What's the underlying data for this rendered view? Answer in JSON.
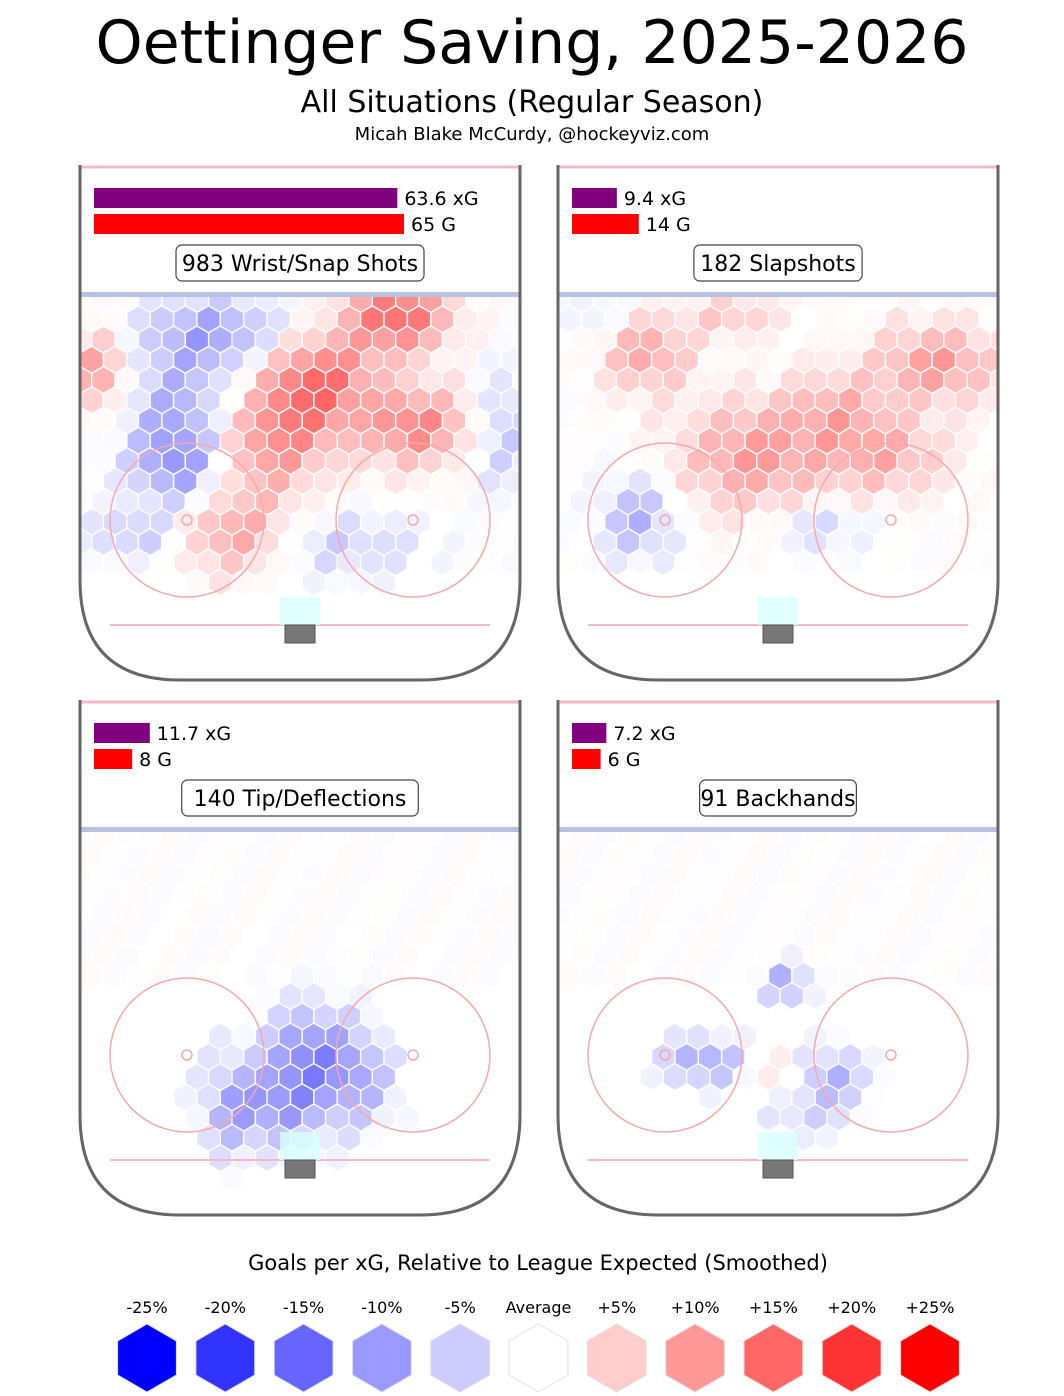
{
  "title": "Oettinger Saving, 2025-2026",
  "subtitle": "All Situations (Regular Season)",
  "credit": "Micah Blake McCurdy, @hockeyviz.com",
  "colors": {
    "xg_bar": "#800080",
    "g_bar": "#ff0000",
    "rink_line": "#666666",
    "blue_line": "#b8c2e0",
    "red_line": "#f5b8c4",
    "crease": "#d8ffff",
    "net": "#777777",
    "faceoff": "#f4a9a9"
  },
  "chart_data": {
    "type": "heatmap",
    "color_scale_title": "Goals per xG, Relative to League Expected (Smoothed)",
    "legend_labels": [
      "-25%",
      "-20%",
      "-15%",
      "-10%",
      "-5%",
      "Average",
      "+5%",
      "+10%",
      "+15%",
      "+20%",
      "+25%"
    ],
    "legend_colors": [
      "#0000ff",
      "#3333ff",
      "#6666ff",
      "#9999ff",
      "#ccccff",
      "#ffffff",
      "#ffcccc",
      "#ff9999",
      "#ff6666",
      "#ff3333",
      "#ff0000"
    ],
    "bar_max_value": 65,
    "panels": [
      {
        "label": "983 Wrist/Snap Shots",
        "xg": 63.6,
        "goals": 65,
        "xg_label": "63.6 xG",
        "goals_label": "65 G"
      },
      {
        "label": "182 Slapshots",
        "xg": 9.4,
        "goals": 14,
        "xg_label": "9.4 xG",
        "goals_label": "14 G"
      },
      {
        "label": "140 Tip/Deflections",
        "xg": 11.7,
        "goals": 8,
        "xg_label": "11.7 xG",
        "goals_label": "8 G"
      },
      {
        "label": "91 Backhands",
        "xg": 7.2,
        "goals": 6,
        "xg_label": "7.2 xG",
        "goals_label": "6 G"
      }
    ]
  }
}
